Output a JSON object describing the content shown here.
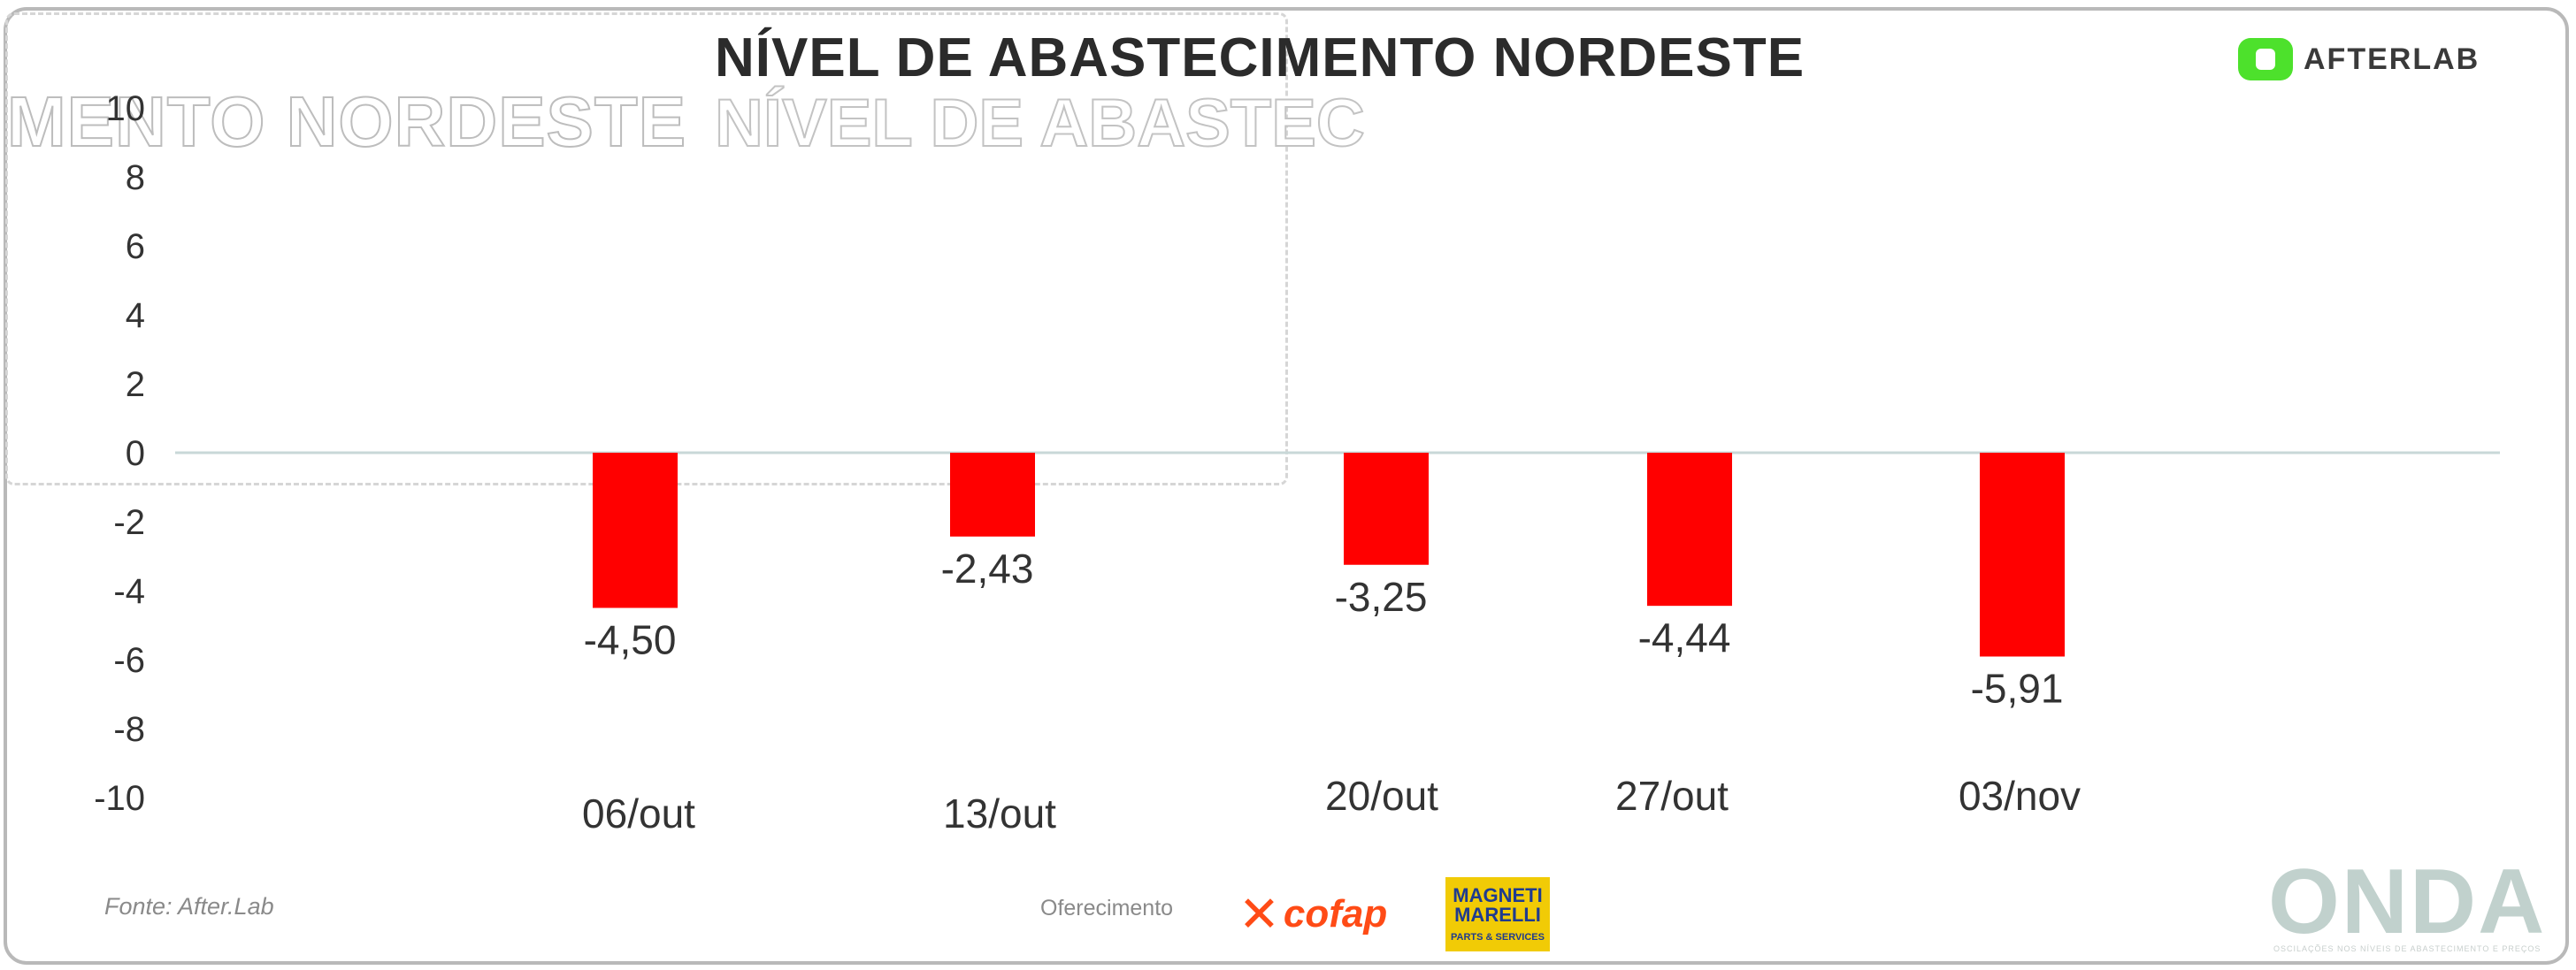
{
  "title": "NÍVEL DE ABASTECIMENTO NORDESTE",
  "ghost_titles": [
    "MENTO NORDESTE",
    "NÍVEL DE ABASTEC"
  ],
  "logo": {
    "text": "AFTERLAB",
    "color": "#4de12c"
  },
  "footer": {
    "source": "Fonte: After.Lab",
    "sponsor_label": "Oferecimento",
    "cofap": "cofap",
    "magneti_name": "MAGNETI MARELLI",
    "magneti_sub": "PARTS & SERVICES",
    "onda": "ONDA",
    "onda_sub": "OSCILAÇÕES NOS NÍVEIS DE ABASTECIMENTO E PREÇOS"
  },
  "colors": {
    "bar": "#ff0000",
    "baseline": "#c8d8d8",
    "text": "#333333"
  },
  "chart_data": {
    "type": "bar",
    "title": "NÍVEL DE ABASTECIMENTO NORDESTE",
    "categories": [
      "06/out",
      "13/out",
      "20/out",
      "27/out",
      "03/nov"
    ],
    "values": [
      -4.5,
      -2.43,
      -3.25,
      -4.44,
      -5.91
    ],
    "value_labels": [
      "-4,50",
      "-2,43",
      "-3,25",
      "-4,44",
      "-5,91"
    ],
    "yticks": [
      10,
      8,
      6,
      4,
      2,
      0,
      -2,
      -4,
      -6,
      -8,
      -10
    ],
    "ylim": [
      -10,
      10
    ],
    "grid": false,
    "legend": "none"
  }
}
